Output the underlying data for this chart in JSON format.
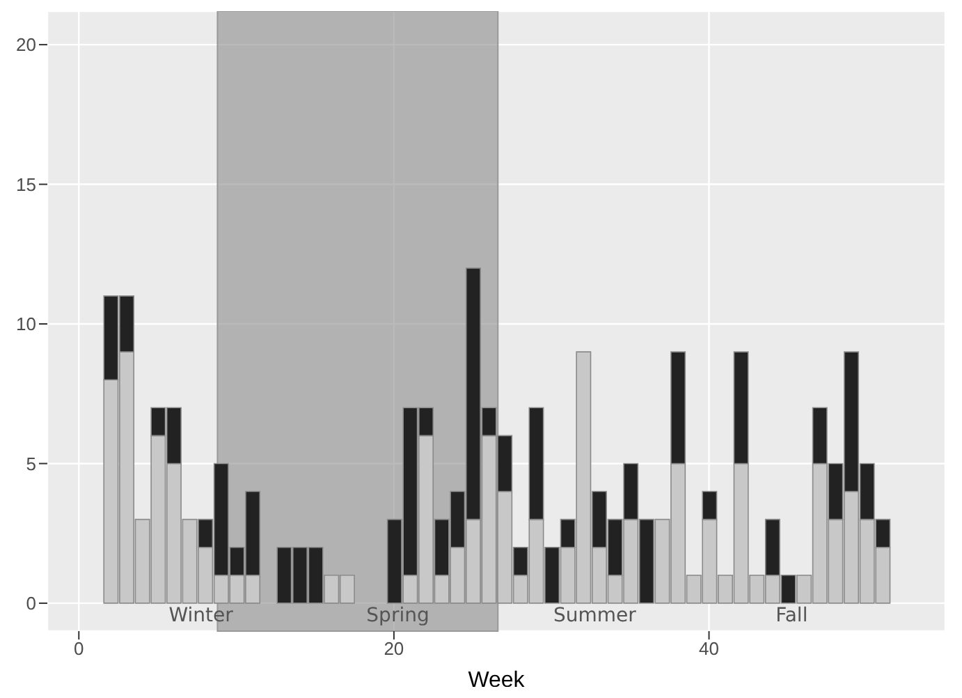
{
  "chart_data": {
    "type": "bar",
    "stacked": true,
    "xlabel": "Week",
    "x": [
      2,
      3,
      4,
      5,
      6,
      7,
      8,
      9,
      10,
      11,
      12,
      13,
      14,
      15,
      16,
      17,
      18,
      19,
      20,
      21,
      22,
      23,
      24,
      25,
      26,
      27,
      28,
      29,
      30,
      31,
      32,
      33,
      34,
      35,
      36,
      37,
      38,
      39,
      40,
      41,
      42,
      43,
      44,
      45,
      46,
      47,
      48,
      49,
      50,
      51
    ],
    "series": [
      {
        "color": "#c8c8c8",
        "values": [
          8,
          9,
          3,
          6,
          5,
          3,
          2,
          1,
          1,
          1,
          0,
          0,
          0,
          0,
          1,
          1,
          0,
          0,
          0,
          1,
          6,
          1,
          2,
          3,
          6,
          4,
          1,
          3,
          0,
          2,
          9,
          2,
          1,
          3,
          0,
          3,
          5,
          1,
          3,
          1,
          5,
          1,
          1,
          0,
          1,
          5,
          3,
          4,
          3,
          2
        ]
      },
      {
        "color": "#222222",
        "values": [
          3,
          2,
          0,
          1,
          2,
          0,
          1,
          4,
          1,
          3,
          0,
          2,
          2,
          2,
          0,
          0,
          0,
          0,
          3,
          6,
          1,
          2,
          2,
          9,
          1,
          2,
          1,
          4,
          2,
          1,
          0,
          2,
          2,
          2,
          3,
          0,
          4,
          0,
          1,
          0,
          4,
          0,
          2,
          1,
          0,
          2,
          2,
          5,
          2,
          1
        ]
      }
    ],
    "xlim": [
      -2,
      55
    ],
    "xticks": [
      0,
      20,
      40
    ],
    "ylim": [
      -1,
      21.2
    ],
    "yticks": [
      0,
      5,
      10,
      15,
      20
    ],
    "grid": true,
    "legend": false,
    "bands": [
      {
        "axis": "x",
        "from": 8.8,
        "to": 26.6,
        "color": "#8c8c8c"
      }
    ],
    "annotations": [
      "Winter",
      "Spring",
      "Summer",
      "Fall"
    ]
  }
}
